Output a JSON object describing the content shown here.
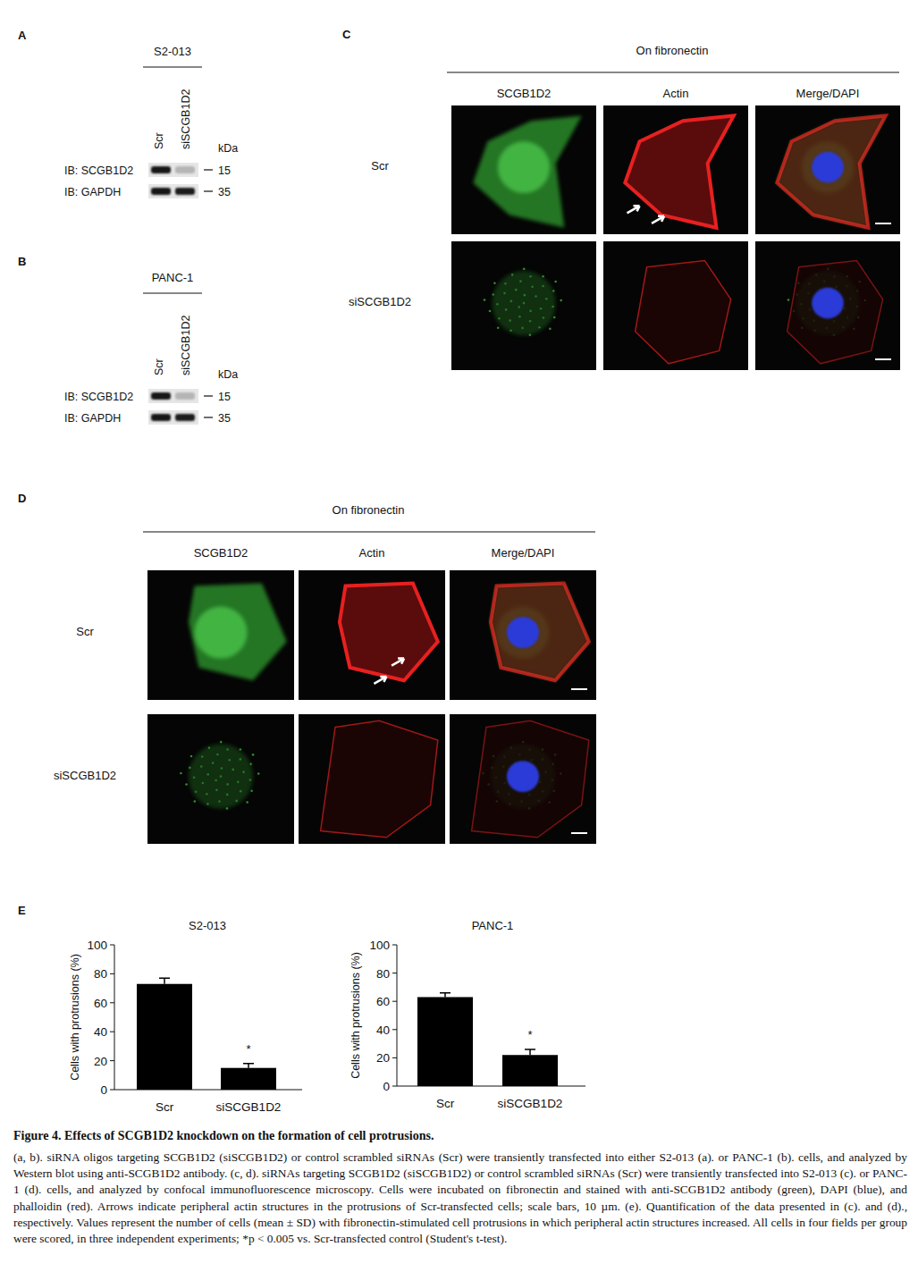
{
  "panels": {
    "A": {
      "label": "A",
      "cell_line": "S2-013",
      "lanes": [
        "Scr",
        "siSCGB1D2"
      ],
      "unit": "kDa",
      "rows": [
        {
          "label": "IB: SCGB1D2",
          "marker": 15
        },
        {
          "label": "IB: GAPDH",
          "marker": 35
        }
      ]
    },
    "B": {
      "label": "B",
      "cell_line": "PANC-1",
      "lanes": [
        "Scr",
        "siSCGB1D2"
      ],
      "unit": "kDa",
      "rows": [
        {
          "label": "IB: SCGB1D2",
          "marker": 15
        },
        {
          "label": "IB: GAPDH",
          "marker": 35
        }
      ]
    },
    "C": {
      "label": "C",
      "condition": "On fibronectin",
      "columns": [
        "SCGB1D2",
        "Actin",
        "Merge/DAPI"
      ],
      "rows": [
        "Scr",
        "siSCGB1D2"
      ]
    },
    "D": {
      "label": "D",
      "condition": "On fibronectin",
      "columns": [
        "SCGB1D2",
        "Actin",
        "Merge/DAPI"
      ],
      "rows": [
        "Scr",
        "siSCGB1D2"
      ]
    },
    "E": {
      "label": "E"
    }
  },
  "chart_data": [
    {
      "type": "bar",
      "title": "S2-013",
      "y_label": "Cells with protrusions (%)",
      "categories": [
        "Scr",
        "siSCGB1D2"
      ],
      "values": [
        73,
        15
      ],
      "error": [
        4,
        3
      ],
      "color": "#000000",
      "ylim": [
        0,
        100
      ],
      "yticks": [
        0,
        20,
        40,
        60,
        80,
        100
      ],
      "annotations": [
        {
          "text": "*",
          "index": 1
        }
      ]
    },
    {
      "type": "bar",
      "title": "PANC-1",
      "y_label": "Cells with protrusions (%)",
      "categories": [
        "Scr",
        "siSCGB1D2"
      ],
      "values": [
        63,
        22
      ],
      "error": [
        3,
        4
      ],
      "color": "#000000",
      "ylim": [
        0,
        100
      ],
      "yticks": [
        0,
        20,
        40,
        60,
        80,
        100
      ],
      "annotations": [
        {
          "text": "*",
          "index": 1
        }
      ]
    }
  ],
  "caption": {
    "title": "Figure 4. Effects of SCGB1D2 knockdown on the formation of cell protrusions.",
    "text": "(a, b). siRNA oligos targeting SCGB1D2 (siSCGB1D2) or control scrambled siRNAs (Scr) were transiently transfected into either S2-013 (a). or PANC-1 (b). cells, and analyzed by Western blot using anti-SCGB1D2 antibody. (c, d). siRNAs targeting SCGB1D2 (siSCGB1D2) or control scrambled siRNAs (Scr) were transiently transfected into S2-013 (c). or PANC-1 (d). cells, and analyzed by confocal immunofluorescence microscopy. Cells were incubated on fibronectin and stained with anti-SCGB1D2 antibody (green), DAPI (blue), and phalloidin (red). Arrows indicate peripheral actin structures in the protrusions of Scr-transfected cells; scale bars, 10 µm. (e). Quantification of the data presented in (c). and (d)., respectively. Values represent the number of cells (mean ± SD) with fibronectin-stimulated cell protrusions in which peripheral actin structures increased. All cells in four fields per group were scored, in three independent experiments; *p < 0.005 vs. Scr-transfected control (Student's t-test)."
  }
}
